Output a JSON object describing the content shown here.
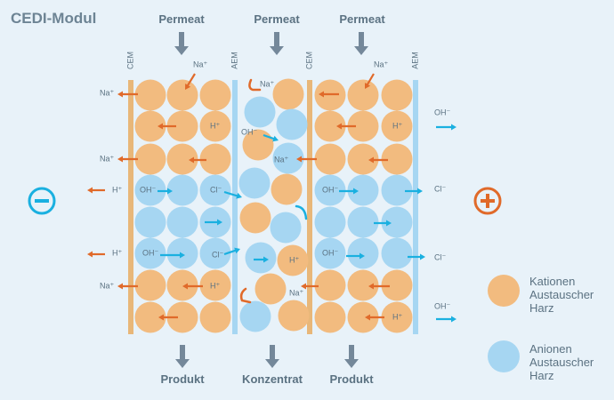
{
  "title": "CEDI-Modul",
  "colors": {
    "background": "#e8f2f9",
    "cation_resin": "#f2bb7f",
    "anion_resin": "#a6d6f2",
    "cem": "#e8b779",
    "aem": "#a6d6f2",
    "cation_arrow": "#e06a2a",
    "anion_arrow": "#1ab0e0",
    "flow_arrow": "#74889a",
    "text": "#5b7282"
  },
  "top_flows": {
    "left": "Permeat",
    "middle": "Permeat",
    "right": "Permeat"
  },
  "bottom_flows": {
    "left": "Produkt",
    "middle": "Konzentrat",
    "right": "Produkt"
  },
  "membranes": {
    "cem": "CEM",
    "aem": "AEM"
  },
  "electrodes": {
    "cathode_icon": "minus-circle-icon",
    "anode_icon": "plus-circle-icon"
  },
  "ions": {
    "na": "Na⁺",
    "h": "H⁺",
    "oh": "OH⁻",
    "cl": "Cl⁻"
  },
  "legend": {
    "cation": [
      "Kationen",
      "Austauscher",
      "Harz"
    ],
    "anion": [
      "Anionen",
      "Austauscher",
      "Harz"
    ]
  }
}
